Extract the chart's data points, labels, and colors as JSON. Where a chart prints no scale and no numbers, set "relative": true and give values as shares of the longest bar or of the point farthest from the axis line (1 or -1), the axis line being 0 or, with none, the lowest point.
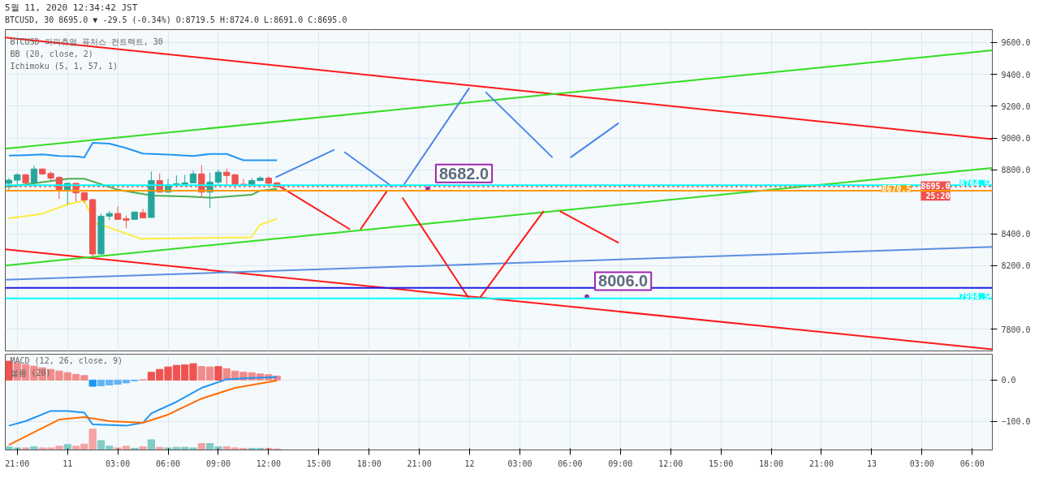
{
  "chart_data": [
    {
      "type": "candlestick",
      "title": "5월 11, 2020 12:34:42 JST",
      "subtitle": "BTCUSD, 30 8695.0 ▼ -29.5 (-0.34%) O:8719.5 H:8724.0 L:8691.0 C:8695.0",
      "x": [
        "2020-05-10T20:30",
        "2020-05-10T21:00",
        "2020-05-10T21:30",
        "2020-05-10T22:00",
        "2020-05-10T22:30",
        "2020-05-10T23:00",
        "2020-05-10T23:30",
        "2020-05-11T00:00",
        "2020-05-11T00:30",
        "2020-05-11T01:00",
        "2020-05-11T01:30",
        "2020-05-11T02:00",
        "2020-05-11T02:30",
        "2020-05-11T03:00",
        "2020-05-11T03:30",
        "2020-05-11T04:00",
        "2020-05-11T04:30",
        "2020-05-11T05:00",
        "2020-05-11T05:30",
        "2020-05-11T06:00",
        "2020-05-11T06:30",
        "2020-05-11T07:00",
        "2020-05-11T07:30",
        "2020-05-11T08:00",
        "2020-05-11T08:30",
        "2020-05-11T09:00",
        "2020-05-11T09:30",
        "2020-05-11T10:00",
        "2020-05-11T10:30",
        "2020-05-11T11:00",
        "2020-05-11T11:30",
        "2020-05-11T12:00",
        "2020-05-11T12:30"
      ],
      "ohlc": [
        [
          8716,
          8749,
          8669,
          8736
        ],
        [
          8736,
          8778,
          8694,
          8770
        ],
        [
          8770,
          8775,
          8700,
          8720
        ],
        [
          8720,
          8828,
          8694,
          8806
        ],
        [
          8806,
          8808,
          8770,
          8775
        ],
        [
          8778,
          8790,
          8736,
          8749
        ],
        [
          8753,
          8761,
          8619,
          8669
        ],
        [
          8669,
          8719,
          8582,
          8716
        ],
        [
          8716,
          8719,
          8602,
          8656
        ],
        [
          8658,
          8661,
          8594,
          8611
        ],
        [
          8614,
          8619,
          8260,
          8273
        ],
        [
          8273,
          8527,
          8268,
          8510
        ],
        [
          8510,
          8544,
          8485,
          8527
        ],
        [
          8527,
          8572,
          8490,
          8490
        ],
        [
          8494,
          8515,
          8435,
          8485
        ],
        [
          8490,
          8538,
          8488,
          8536
        ],
        [
          8532,
          8556,
          8499,
          8499
        ],
        [
          8502,
          8790,
          8502,
          8733
        ],
        [
          8733,
          8778,
          8661,
          8661
        ],
        [
          8661,
          8744,
          8661,
          8706
        ],
        [
          8706,
          8766,
          8706,
          8713
        ],
        [
          8711,
          8770,
          8703,
          8719
        ],
        [
          8719,
          8795,
          8719,
          8775
        ],
        [
          8775,
          8831,
          8628,
          8661
        ],
        [
          8661,
          8783,
          8561,
          8724
        ],
        [
          8724,
          8803,
          8703,
          8786
        ],
        [
          8786,
          8808,
          8703,
          8765
        ],
        [
          8770,
          8773,
          8683,
          8708
        ],
        [
          8711,
          8744,
          8703,
          8706
        ],
        [
          8708,
          8749,
          8694,
          8733
        ],
        [
          8733,
          8761,
          8731,
          8749
        ],
        [
          8749,
          8761,
          8703,
          8716
        ],
        [
          8719.5,
          8724,
          8691,
          8695
        ]
      ],
      "colors": [
        "#26a69a",
        "#26a69a",
        "#ef5350",
        "#26a69a",
        "#ef5350",
        "#ef5350",
        "#ef5350",
        "#26a69a",
        "#ef5350",
        "#ef5350",
        "#ef5350",
        "#26a69a",
        "#26a69a",
        "#ef5350",
        "#ef5350",
        "#26a69a",
        "#ef5350",
        "#26a69a",
        "#ef5350",
        "#26a69a",
        "#26a69a",
        "#26a69a",
        "#26a69a",
        "#ef5350",
        "#26a69a",
        "#26a69a",
        "#ef5350",
        "#ef5350",
        "#ef5350",
        "#26a69a",
        "#26a69a",
        "#ef5350",
        "#ef5350"
      ],
      "series": [
        {
          "type": "line",
          "color": "#2196f3",
          "x": [
            "2020-05-10T20:30",
            "2020-05-10T21:30",
            "2020-05-10T22:30",
            "2020-05-10T23:30",
            "2020-05-11T00:30",
            "2020-05-11T01:00",
            "2020-05-11T01:30",
            "2020-05-11T02:30",
            "2020-05-11T03:30",
            "2020-05-11T04:30",
            "2020-05-11T06:00",
            "2020-05-11T07:30",
            "2020-05-11T08:30",
            "2020-05-11T09:30",
            "2020-05-11T10:30",
            "2020-05-11T12:30"
          ],
          "values": [
            8890,
            8893,
            8898,
            8888,
            8885,
            8878,
            8970,
            8965,
            8937,
            8903,
            8896,
            8887,
            8900,
            8900,
            8861,
            8861
          ]
        },
        {
          "type": "line",
          "color": "#4caf50",
          "x": [
            "2020-05-10T20:24",
            "2020-05-11T00:03",
            "2020-05-11T01:00",
            "2020-05-11T02:56",
            "2020-05-11T05:02",
            "2020-05-11T07:17",
            "2020-05-11T08:34",
            "2020-05-11T10:59",
            "2020-05-11T11:28",
            "2020-05-11T12:30"
          ],
          "values": [
            8694,
            8745,
            8745,
            8678,
            8639,
            8633,
            8626,
            8644,
            8669,
            8681
          ]
        },
        {
          "type": "line",
          "color": "#ffeb3b",
          "x": [
            "2020-05-10T20:29",
            "2020-05-10T22:27",
            "2020-05-11T00:03",
            "2020-05-11T01:00",
            "2020-05-11T01:38",
            "2020-05-11T02:08",
            "2020-05-11T04:23",
            "2020-05-11T07:17",
            "2020-05-11T10:59",
            "2020-05-11T11:28",
            "2020-05-11T12:30"
          ],
          "values": [
            8497,
            8524,
            8586,
            8607,
            8465,
            8452,
            8368,
            8372,
            8377,
            8455,
            8494
          ]
        },
        {
          "type": "line",
          "color": "#ff1a1a",
          "x": [
            "2020-05-10T20:17",
            "2020-05-13T07:12"
          ],
          "values": [
            9630,
            8993
          ]
        },
        {
          "type": "line",
          "color": "#33dd22",
          "x": [
            "2020-05-10T20:17",
            "2020-05-13T07:12"
          ],
          "values": [
            8933,
            9550
          ]
        },
        {
          "type": "line",
          "color": "#ff1a1a",
          "x": [
            "2020-05-10T20:17",
            "2020-05-13T07:12"
          ],
          "values": [
            8302,
            7675
          ]
        },
        {
          "type": "line",
          "color": "#33dd22",
          "x": [
            "2020-05-10T20:17",
            "2020-05-13T07:12"
          ],
          "values": [
            8201,
            8813
          ]
        },
        {
          "type": "line",
          "color": "#5b8fe0",
          "x": [
            "2020-05-10T20:17",
            "2020-05-13T07:12"
          ],
          "values": [
            8111,
            8317
          ]
        },
        {
          "type": "line",
          "color": "#4a86e8",
          "x": [
            "2020-05-11T12:25",
            "2020-05-11T15:56"
          ],
          "values": [
            8753,
            8928
          ]
        },
        {
          "type": "line",
          "color": "#4a86e8",
          "x": [
            "2020-05-11T16:31",
            "2020-05-11T19:25"
          ],
          "values": [
            8913,
            8693
          ]
        },
        {
          "type": "line",
          "color": "#4a86e8",
          "x": [
            "2020-05-11T19:59",
            "2020-05-11T23:59"
          ],
          "values": [
            8693,
            9314
          ]
        },
        {
          "type": "line",
          "color": "#4a86e8",
          "x": [
            "2020-05-12T00:57",
            "2020-05-12T04:57"
          ],
          "values": [
            9289,
            8878
          ]
        },
        {
          "type": "line",
          "color": "#4a86e8",
          "x": [
            "2020-05-12T06:01",
            "2020-05-12T08:54"
          ],
          "values": [
            8878,
            9094
          ]
        },
        {
          "type": "line",
          "color": "#ff1a1a",
          "x": [
            "2020-05-11T12:25",
            "2020-05-11T16:52"
          ],
          "values": [
            8713,
            8427
          ]
        },
        {
          "type": "line",
          "color": "#ff1a1a",
          "x": [
            "2020-05-11T17:29",
            "2020-05-11T19:04"
          ],
          "values": [
            8427,
            8668
          ]
        },
        {
          "type": "line",
          "color": "#ff1a1a",
          "x": [
            "2020-05-11T19:59",
            "2020-05-11T23:59"
          ],
          "values": [
            8627,
            7991
          ]
        },
        {
          "type": "line",
          "color": "#ff1a1a",
          "x": [
            "2020-05-12T00:34",
            "2020-05-12T04:25"
          ],
          "values": [
            7991,
            8542
          ]
        },
        {
          "type": "line",
          "color": "#ff1a1a",
          "x": [
            "2020-05-12T05:23",
            "2020-05-12T08:54"
          ],
          "values": [
            8542,
            8342
          ]
        }
      ],
      "ref_lines": [
        {
          "axis": "y",
          "value": 8704.5,
          "label": "8704.5",
          "color": "#00ffff"
        },
        {
          "axis": "y",
          "value": 8695.0,
          "label": "8695.0\n25:20",
          "color": "#ef5350",
          "line_style": "dotted"
        },
        {
          "axis": "y",
          "value": 8670.5,
          "label": "8670.5",
          "color": "#ff9800"
        },
        {
          "axis": "y",
          "value": 8061,
          "color": "#1f1fdd"
        },
        {
          "axis": "y",
          "value": 7994.5,
          "label": "7994.5",
          "color": "#00ffff"
        }
      ],
      "annotations": [
        "BTCUSD 퍼피츄얼 퓨처스 컨트랙트, 30",
        "BB (20, close, 2)",
        "Ichimoku (5, 1, 57, 1)",
        {
          "text": "8682.0",
          "x": "2020-05-11T21:30",
          "y": 8682
        },
        {
          "text": "8006.0",
          "x": "2020-05-12T07:00",
          "y": 8006
        }
      ],
      "xlim": [
        "2020-05-10T20:17",
        "2020-05-13T07:12"
      ],
      "ylim": [
        7665,
        9680
      ],
      "xticks": [
        {
          "value": "2020-05-10T21:00",
          "label": null
        },
        {
          "value": "2020-05-11",
          "label": null
        },
        {
          "value": "2020-05-11T03:00",
          "label": null
        },
        {
          "value": "2020-05-11T06:00",
          "label": null
        },
        {
          "value": "2020-05-11T09:00",
          "label": null
        },
        {
          "value": "2020-05-11T12:00",
          "label": null
        },
        {
          "value": "2020-05-11T15:00",
          "label": null
        },
        {
          "value": "2020-05-11T18:00",
          "label": null
        },
        {
          "value": "2020-05-11T21:00",
          "label": null
        },
        {
          "value": "2020-05-12",
          "label": null
        },
        {
          "value": "2020-05-12T03:00",
          "label": null
        },
        {
          "value": "2020-05-12T06:00",
          "label": null
        },
        {
          "value": "2020-05-12T09:00",
          "label": null
        },
        {
          "value": "2020-05-12T12:00",
          "label": null
        },
        {
          "value": "2020-05-12T15:00",
          "label": null
        },
        {
          "value": "2020-05-12T18:00",
          "label": null
        },
        {
          "value": "2020-05-12T21:00",
          "label": null
        },
        {
          "value": "2020-05-13",
          "label": null
        },
        {
          "value": "2020-05-13T03:00",
          "label": null
        },
        {
          "value": "2020-05-13T06:00",
          "label": null
        }
      ],
      "yticks": [
        {
          "value": 7800,
          "label": "7800.0"
        },
        {
          "value": 8200,
          "label": "8200.0"
        },
        {
          "value": 8400,
          "label": "8400.0"
        },
        {
          "value": 8800,
          "label": "8800.0"
        },
        {
          "value": 9000,
          "label": "9000.0"
        },
        {
          "value": 9200,
          "label": "9200.0"
        },
        {
          "value": 9400,
          "label": "9400.0"
        },
        {
          "value": 9600,
          "label": "9600.0"
        }
      ],
      "grid": true,
      "tick_labels": "y"
    },
    {
      "type": "bar",
      "x": [
        "2020-05-10T20:30",
        "2020-05-10T21:00",
        "2020-05-10T21:30",
        "2020-05-10T22:00",
        "2020-05-10T22:30",
        "2020-05-10T23:00",
        "2020-05-10T23:30",
        "2020-05-11T00:00",
        "2020-05-11T00:30",
        "2020-05-11T01:00",
        "2020-05-11T01:30",
        "2020-05-11T02:00",
        "2020-05-11T02:30",
        "2020-05-11T03:00",
        "2020-05-11T03:30",
        "2020-05-11T04:00",
        "2020-05-11T04:30",
        "2020-05-11T05:00",
        "2020-05-11T05:30",
        "2020-05-11T06:00",
        "2020-05-11T06:30",
        "2020-05-11T07:00",
        "2020-05-11T07:30",
        "2020-05-11T08:00",
        "2020-05-11T08:30",
        "2020-05-11T09:00",
        "2020-05-11T09:30",
        "2020-05-11T10:00",
        "2020-05-11T10:30",
        "2020-05-11T11:00",
        "2020-05-11T11:30",
        "2020-05-11T12:00",
        "2020-05-11T12:30"
      ],
      "series": [
        {
          "type": "bar",
          "values": [
            46,
            42,
            38,
            34,
            30,
            26,
            22,
            18,
            14,
            11,
            -15,
            -14,
            -12,
            -10,
            -7,
            -2,
            1,
            19,
            26,
            32,
            36,
            37,
            40,
            33,
            32,
            33,
            28,
            22,
            19,
            18,
            15,
            13,
            10
          ],
          "colors": [
            "#ef5350",
            "#f28b8b",
            "#f28b8b",
            "#f28b8b",
            "#f28b8b",
            "#f28b8b",
            "#f28b8b",
            "#f28b8b",
            "#f28b8b",
            "#f28b8b",
            "#2196f3",
            "#64b5f6",
            "#64b5f6",
            "#64b5f6",
            "#64b5f6",
            "#64b5f6",
            "#f28b8b",
            "#ef5350",
            "#ef5350",
            "#ef5350",
            "#ef5350",
            "#ef5350",
            "#ef5350",
            "#f28b8b",
            "#f28b8b",
            "#ef5350",
            "#f28b8b",
            "#f28b8b",
            "#f28b8b",
            "#f28b8b",
            "#f28b8b",
            "#f28b8b",
            "#f28b8b"
          ]
        },
        {
          "type": "line",
          "color": "#2196f3",
          "x": [
            "2020-05-10T20:30",
            "2020-05-10T21:30",
            "2020-05-10T23:00",
            "2020-05-11T00:00",
            "2020-05-11T01:00",
            "2020-05-11T01:30",
            "2020-05-11T03:30",
            "2020-05-11T04:30",
            "2020-05-11T05:00",
            "2020-05-11T06:30",
            "2020-05-11T08:00",
            "2020-05-11T09:30",
            "2020-05-11T11:00",
            "2020-05-11T12:30"
          ],
          "values": [
            -111,
            -100,
            -75,
            -75,
            -79,
            -108,
            -111,
            -104,
            -81,
            -53,
            -19,
            2,
            5,
            7
          ]
        },
        {
          "type": "line",
          "color": "#ff6d00",
          "x": [
            "2020-05-10T20:30",
            "2020-05-10T22:00",
            "2020-05-10T23:30",
            "2020-05-11T01:00",
            "2020-05-11T02:30",
            "2020-05-11T04:30",
            "2020-05-11T06:00",
            "2020-05-11T08:00",
            "2020-05-11T10:00",
            "2020-05-11T12:30"
          ],
          "values": [
            -158,
            -127,
            -96,
            -90,
            -100,
            -104,
            -84,
            -45,
            -19,
            -1
          ]
        }
      ],
      "annotations": [
        "MACD (12, 26, close, 9)"
      ],
      "xlim": [
        "2020-05-10T20:17",
        "2020-05-13T07:12"
      ],
      "ylim": [
        -170,
        63
      ],
      "xticks": [
        {
          "value": "2020-05-10T21:00",
          "label": "21:00"
        },
        {
          "value": "2020-05-11",
          "label": "11"
        },
        {
          "value": "2020-05-11T03:00",
          "label": "03:00"
        },
        {
          "value": "2020-05-11T06:00",
          "label": "06:00"
        },
        {
          "value": "2020-05-11T09:00",
          "label": "09:00"
        },
        {
          "value": "2020-05-11T12:00",
          "label": "12:00"
        },
        {
          "value": "2020-05-11T15:00",
          "label": "15:00"
        },
        {
          "value": "2020-05-11T18:00",
          "label": "18:00"
        },
        {
          "value": "2020-05-11T21:00",
          "label": "21:00"
        },
        {
          "value": "2020-05-12",
          "label": "12"
        },
        {
          "value": "2020-05-12T03:00",
          "label": "03:00"
        },
        {
          "value": "2020-05-12T06:00",
          "label": "06:00"
        },
        {
          "value": "2020-05-12T09:00",
          "label": "09:00"
        },
        {
          "value": "2020-05-12T12:00",
          "label": "12:00"
        },
        {
          "value": "2020-05-12T15:00",
          "label": "15:00"
        },
        {
          "value": "2020-05-12T18:00",
          "label": "18:00"
        },
        {
          "value": "2020-05-12T21:00",
          "label": "21:00"
        },
        {
          "value": "2020-05-13",
          "label": "13"
        },
        {
          "value": "2020-05-13T03:00",
          "label": "03:00"
        },
        {
          "value": "2020-05-13T06:00",
          "label": "06:00"
        }
      ],
      "yticks": [
        {
          "value": 0,
          "label": "0.0"
        },
        {
          "value": -100,
          "label": "−100.0"
        }
      ],
      "grid": true
    },
    {
      "type": "bar",
      "relative": true,
      "x": [
        "2020-05-10T20:30",
        "2020-05-10T21:00",
        "2020-05-10T21:30",
        "2020-05-10T22:00",
        "2020-05-10T22:30",
        "2020-05-10T23:00",
        "2020-05-10T23:30",
        "2020-05-11T00:00",
        "2020-05-11T00:30",
        "2020-05-11T01:00",
        "2020-05-11T01:30",
        "2020-05-11T02:00",
        "2020-05-11T02:30",
        "2020-05-11T03:00",
        "2020-05-11T03:30",
        "2020-05-11T04:00",
        "2020-05-11T04:30",
        "2020-05-11T05:00",
        "2020-05-11T05:30",
        "2020-05-11T06:00",
        "2020-05-11T06:30",
        "2020-05-11T07:00",
        "2020-05-11T07:30",
        "2020-05-11T08:00",
        "2020-05-11T08:30",
        "2020-05-11T09:00",
        "2020-05-11T09:30",
        "2020-05-11T10:00",
        "2020-05-11T10:30",
        "2020-05-11T11:00",
        "2020-05-11T11:30",
        "2020-05-11T12:00",
        "2020-05-11T12:30"
      ],
      "values": [
        0.15,
        0.1,
        0.1,
        0.15,
        0.1,
        0.1,
        0.18,
        0.26,
        0.18,
        0.28,
        1,
        0.45,
        0.18,
        0.1,
        0.18,
        0.08,
        0.15,
        0.49,
        0.13,
        0.1,
        0.13,
        0.13,
        0.1,
        0.31,
        0.31,
        0.15,
        0.15,
        0.1,
        0.08,
        0.08,
        0.08,
        0.08,
        0.05
      ],
      "colors": [
        "#80cbc4",
        "#80cbc4",
        "#f5a3a3",
        "#80cbc4",
        "#f5a3a3",
        "#f5a3a3",
        "#f5a3a3",
        "#80cbc4",
        "#f5a3a3",
        "#f5a3a3",
        "#f5a3a3",
        "#80cbc4",
        "#80cbc4",
        "#f5a3a3",
        "#f5a3a3",
        "#80cbc4",
        "#f5a3a3",
        "#80cbc4",
        "#f5a3a3",
        "#80cbc4",
        "#80cbc4",
        "#80cbc4",
        "#80cbc4",
        "#f5a3a3",
        "#80cbc4",
        "#80cbc4",
        "#f5a3a3",
        "#f5a3a3",
        "#f5a3a3",
        "#80cbc4",
        "#80cbc4",
        "#f5a3a3",
        "#f5a3a3"
      ],
      "annotations": [
        "볼륨 (20)"
      ],
      "xlim": [
        "2020-05-10T20:17",
        "2020-05-13T07:12"
      ],
      "tick_labels": false
    }
  ]
}
